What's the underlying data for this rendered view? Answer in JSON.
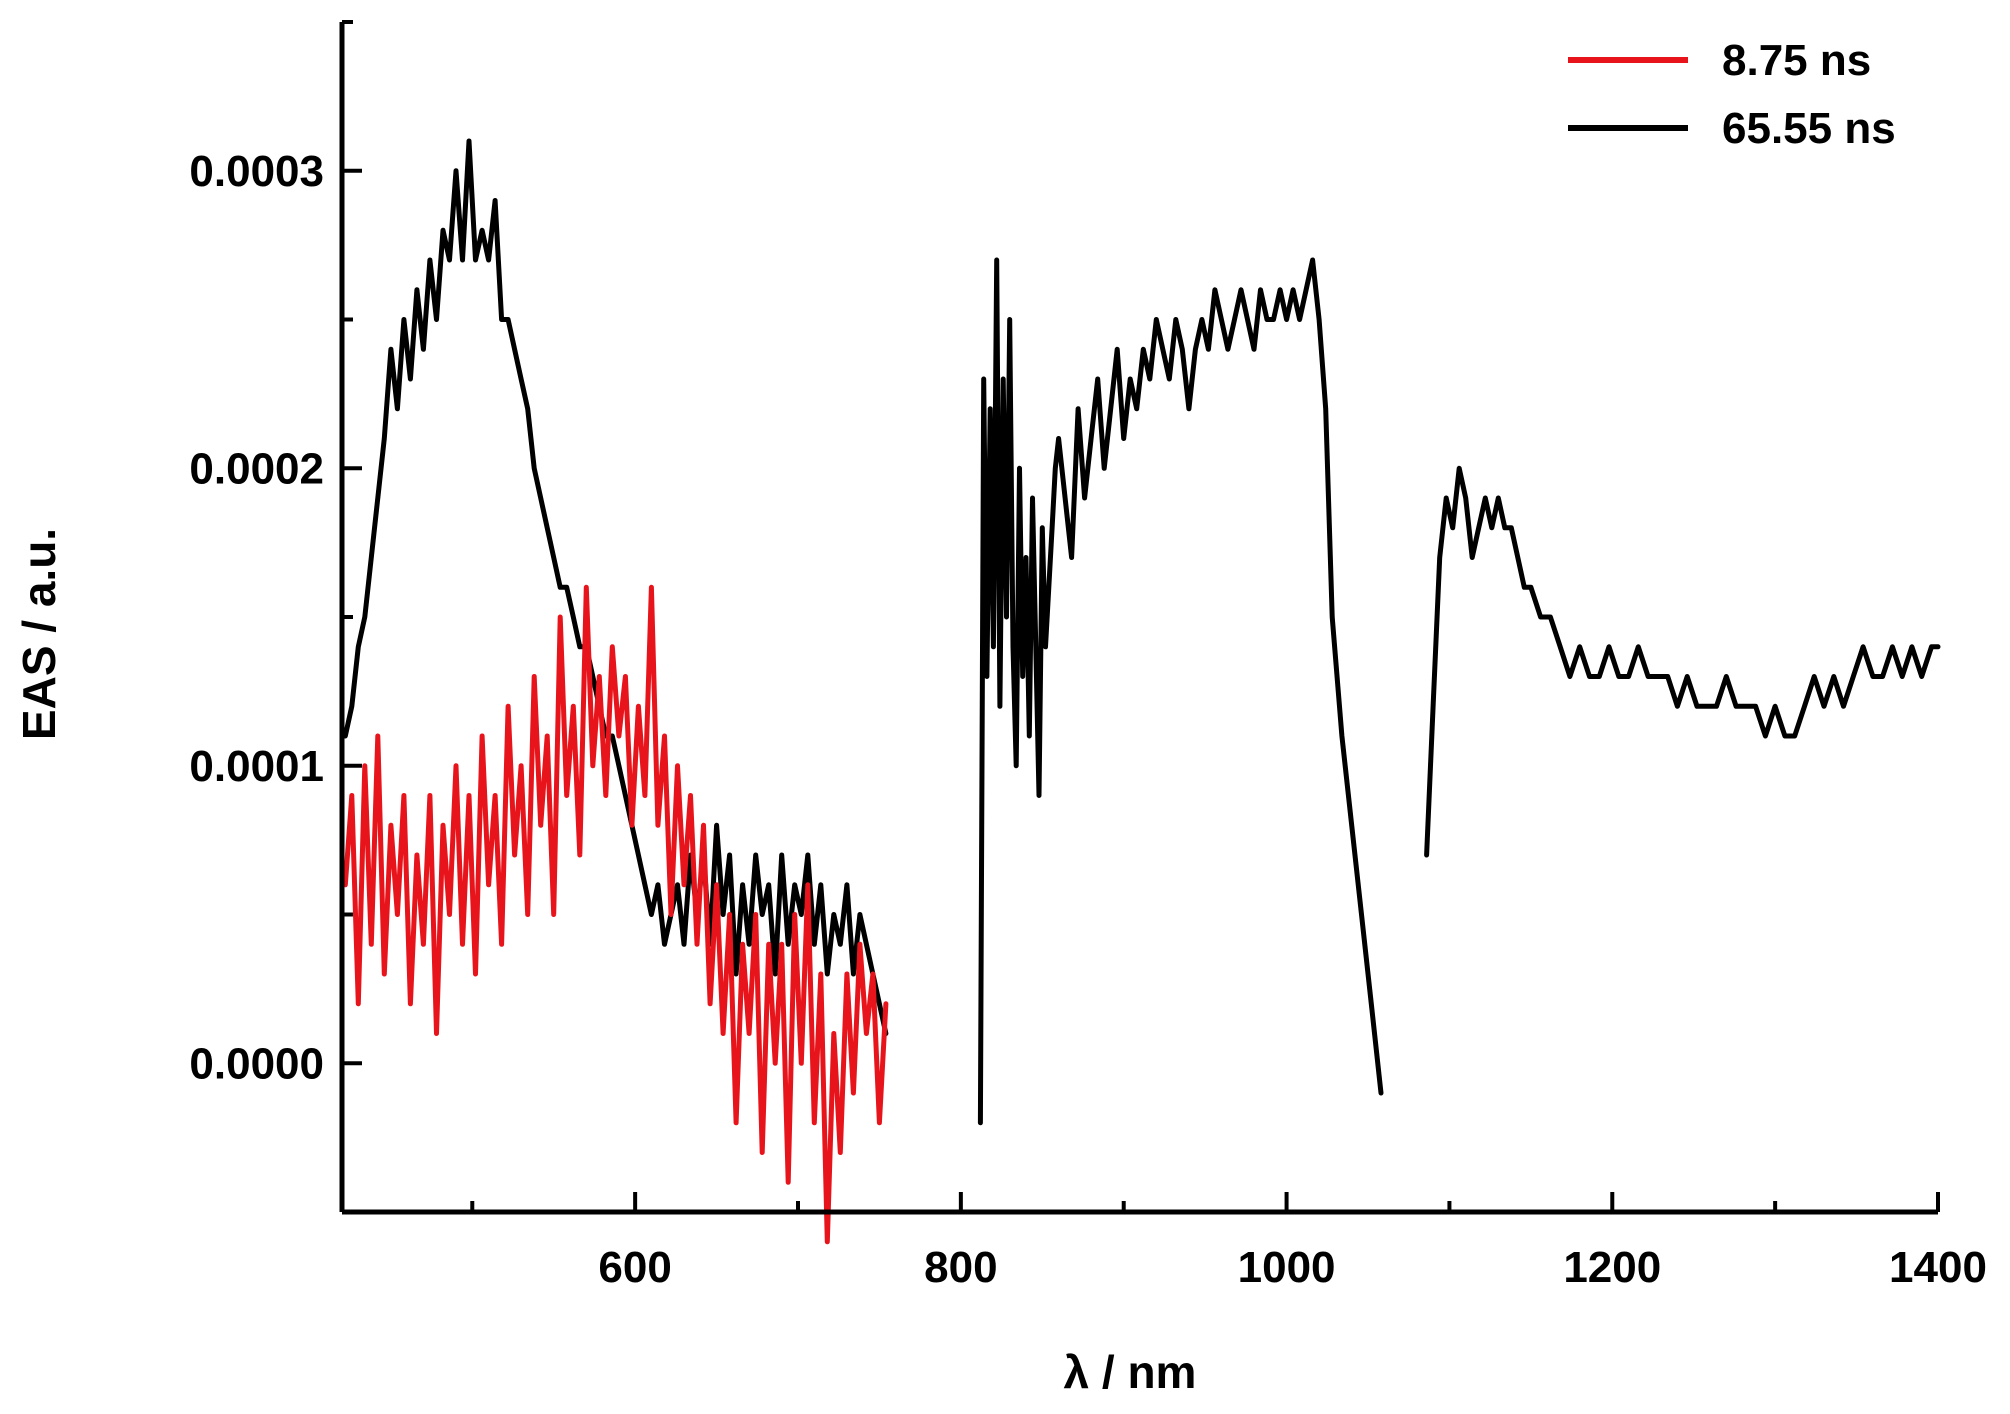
{
  "chart_data": {
    "type": "line",
    "xlabel": "λ / nm",
    "ylabel": "EAS / a.u.",
    "xlim": [
      420,
      1400
    ],
    "ylim": [
      -5e-05,
      0.00035
    ],
    "x_major_ticks": [
      600,
      800,
      1000,
      1200,
      1400
    ],
    "x_tick_labels": [
      "600",
      "800",
      "1000",
      "1200",
      "1400"
    ],
    "y_major_ticks": [
      0.0,
      0.0001,
      0.0002,
      0.0003
    ],
    "y_tick_labels": [
      "0.0000",
      "0.0001",
      "0.0002",
      "0.0003"
    ],
    "grid": false,
    "legend_position": "top-right",
    "series": [
      {
        "name": "8.75 ns",
        "color": "#e8141b",
        "segments": [
          {
            "x": [
              422,
              426,
              430,
              434,
              438,
              442,
              446,
              450,
              454,
              458,
              462,
              466,
              470,
              474,
              478,
              482,
              486,
              490,
              494,
              498,
              502,
              506,
              510,
              514,
              518,
              522,
              526,
              530,
              534,
              538,
              542,
              546,
              550,
              554,
              558,
              562,
              566,
              570,
              574,
              578,
              582,
              586,
              590,
              594,
              598,
              602,
              606,
              610,
              614,
              618,
              622,
              626,
              630,
              634,
              638,
              642,
              646,
              650,
              654,
              658,
              662,
              666,
              670,
              674,
              678,
              682,
              686,
              690,
              694,
              698,
              702,
              706,
              710,
              714,
              718,
              722,
              726,
              730,
              734,
              738,
              742,
              746,
              750,
              754
            ],
            "y": [
              6e-05,
              9e-05,
              2e-05,
              0.0001,
              4e-05,
              0.00011,
              3e-05,
              8e-05,
              5e-05,
              9e-05,
              2e-05,
              7e-05,
              4e-05,
              9e-05,
              1e-05,
              8e-05,
              5e-05,
              0.0001,
              4e-05,
              9e-05,
              3e-05,
              0.00011,
              6e-05,
              9e-05,
              4e-05,
              0.00012,
              7e-05,
              0.0001,
              5e-05,
              0.00013,
              8e-05,
              0.00011,
              5e-05,
              0.00015,
              9e-05,
              0.00012,
              7e-05,
              0.00016,
              0.0001,
              0.00013,
              9e-05,
              0.00014,
              0.00011,
              0.00013,
              8e-05,
              0.00012,
              9e-05,
              0.00016,
              8e-05,
              0.00011,
              5e-05,
              0.0001,
              6e-05,
              9e-05,
              4e-05,
              8e-05,
              2e-05,
              6e-05,
              1e-05,
              5e-05,
              -2e-05,
              4e-05,
              1e-05,
              5e-05,
              -3e-05,
              4e-05,
              0.0,
              4e-05,
              -4e-05,
              5e-05,
              0.0,
              6e-05,
              -2e-05,
              3e-05,
              -6e-05,
              1e-05,
              -3e-05,
              3e-05,
              -1e-05,
              4e-05,
              1e-05,
              3e-05,
              -2e-05,
              2e-05
            ]
          }
        ]
      },
      {
        "name": "65.55 ns",
        "color": "#000000",
        "segments": [
          {
            "x": [
              422,
              426,
              430,
              434,
              438,
              442,
              446,
              450,
              454,
              458,
              462,
              466,
              470,
              474,
              478,
              482,
              486,
              490,
              494,
              498,
              502,
              506,
              510,
              514,
              518,
              522,
              526,
              530,
              534,
              538,
              542,
              546,
              550,
              554,
              558,
              562,
              566,
              570,
              574,
              578,
              582,
              586,
              590,
              594,
              598,
              602,
              606,
              610,
              614,
              618,
              622,
              626,
              630,
              634,
              638,
              642,
              646,
              650,
              654,
              658,
              662,
              666,
              670,
              674,
              678,
              682,
              686,
              690,
              694,
              698,
              702,
              706,
              710,
              714,
              718,
              722,
              726,
              730,
              734,
              738,
              742,
              746,
              750,
              754
            ],
            "y": [
              0.00011,
              0.00012,
              0.00014,
              0.00015,
              0.00017,
              0.00019,
              0.00021,
              0.00024,
              0.00022,
              0.00025,
              0.00023,
              0.00026,
              0.00024,
              0.00027,
              0.00025,
              0.00028,
              0.00027,
              0.0003,
              0.00027,
              0.00031,
              0.00027,
              0.00028,
              0.00027,
              0.00029,
              0.00025,
              0.00025,
              0.00024,
              0.00023,
              0.00022,
              0.0002,
              0.00019,
              0.00018,
              0.00017,
              0.00016,
              0.00016,
              0.00015,
              0.00014,
              0.00014,
              0.00013,
              0.00012,
              0.00011,
              0.00011,
              0.0001,
              9e-05,
              8e-05,
              7e-05,
              6e-05,
              5e-05,
              6e-05,
              4e-05,
              5e-05,
              6e-05,
              4e-05,
              7e-05,
              5e-05,
              7e-05,
              4e-05,
              8e-05,
              5e-05,
              7e-05,
              3e-05,
              6e-05,
              4e-05,
              7e-05,
              5e-05,
              6e-05,
              3e-05,
              7e-05,
              4e-05,
              6e-05,
              5e-05,
              7e-05,
              4e-05,
              6e-05,
              3e-05,
              5e-05,
              4e-05,
              6e-05,
              3e-05,
              5e-05,
              4e-05,
              3e-05,
              2e-05,
              1e-05
            ]
          },
          {
            "x": [
              812,
              814,
              816,
              818,
              820,
              822,
              824,
              826,
              828,
              830,
              832,
              834,
              836,
              838,
              840,
              842,
              844,
              846,
              848,
              850,
              852,
              854,
              856,
              858,
              860,
              864,
              868,
              872,
              876,
              880,
              884,
              888,
              892,
              896,
              900,
              904,
              908,
              912,
              916,
              920,
              924,
              928,
              932,
              936,
              940,
              944,
              948,
              952,
              956,
              960,
              964,
              968,
              972,
              976,
              980,
              984,
              988,
              992,
              996,
              1000,
              1004,
              1008,
              1012,
              1016,
              1020,
              1024,
              1028,
              1034,
              1040,
              1046,
              1052,
              1058
            ],
            "y": [
              -2e-05,
              0.00023,
              0.00013,
              0.00022,
              0.00014,
              0.00027,
              0.00012,
              0.00023,
              0.00015,
              0.00025,
              0.00014,
              0.0001,
              0.0002,
              0.00013,
              0.00017,
              0.00011,
              0.00019,
              0.00014,
              9e-05,
              0.00018,
              0.00014,
              0.00016,
              0.00018,
              0.0002,
              0.00021,
              0.00019,
              0.00017,
              0.00022,
              0.00019,
              0.00021,
              0.00023,
              0.0002,
              0.00022,
              0.00024,
              0.00021,
              0.00023,
              0.00022,
              0.00024,
              0.00023,
              0.00025,
              0.00024,
              0.00023,
              0.00025,
              0.00024,
              0.00022,
              0.00024,
              0.00025,
              0.00024,
              0.00026,
              0.00025,
              0.00024,
              0.00025,
              0.00026,
              0.00025,
              0.00024,
              0.00026,
              0.00025,
              0.00025,
              0.00026,
              0.00025,
              0.00026,
              0.00025,
              0.00026,
              0.00027,
              0.00025,
              0.00022,
              0.00015,
              0.00011,
              8e-05,
              5e-05,
              2e-05,
              -1e-05
            ]
          },
          {
            "x": [
              1086,
              1090,
              1094,
              1098,
              1102,
              1106,
              1110,
              1114,
              1118,
              1122,
              1126,
              1130,
              1134,
              1138,
              1142,
              1146,
              1150,
              1156,
              1162,
              1168,
              1174,
              1180,
              1186,
              1192,
              1198,
              1204,
              1210,
              1216,
              1222,
              1228,
              1234,
              1240,
              1246,
              1252,
              1258,
              1264,
              1270,
              1276,
              1282,
              1288,
              1294,
              1300,
              1306,
              1312,
              1318,
              1324,
              1330,
              1336,
              1342,
              1348,
              1354,
              1360,
              1366,
              1372,
              1378,
              1384,
              1390,
              1396,
              1400
            ],
            "y": [
              7e-05,
              0.00012,
              0.00017,
              0.00019,
              0.00018,
              0.0002,
              0.00019,
              0.00017,
              0.00018,
              0.00019,
              0.00018,
              0.00019,
              0.00018,
              0.00018,
              0.00017,
              0.00016,
              0.00016,
              0.00015,
              0.00015,
              0.00014,
              0.00013,
              0.00014,
              0.00013,
              0.00013,
              0.00014,
              0.00013,
              0.00013,
              0.00014,
              0.00013,
              0.00013,
              0.00013,
              0.00012,
              0.00013,
              0.00012,
              0.00012,
              0.00012,
              0.00013,
              0.00012,
              0.00012,
              0.00012,
              0.00011,
              0.00012,
              0.00011,
              0.00011,
              0.00012,
              0.00013,
              0.00012,
              0.00013,
              0.00012,
              0.00013,
              0.00014,
              0.00013,
              0.00013,
              0.00014,
              0.00013,
              0.00014,
              0.00013,
              0.00014,
              0.00014
            ]
          }
        ]
      }
    ]
  }
}
